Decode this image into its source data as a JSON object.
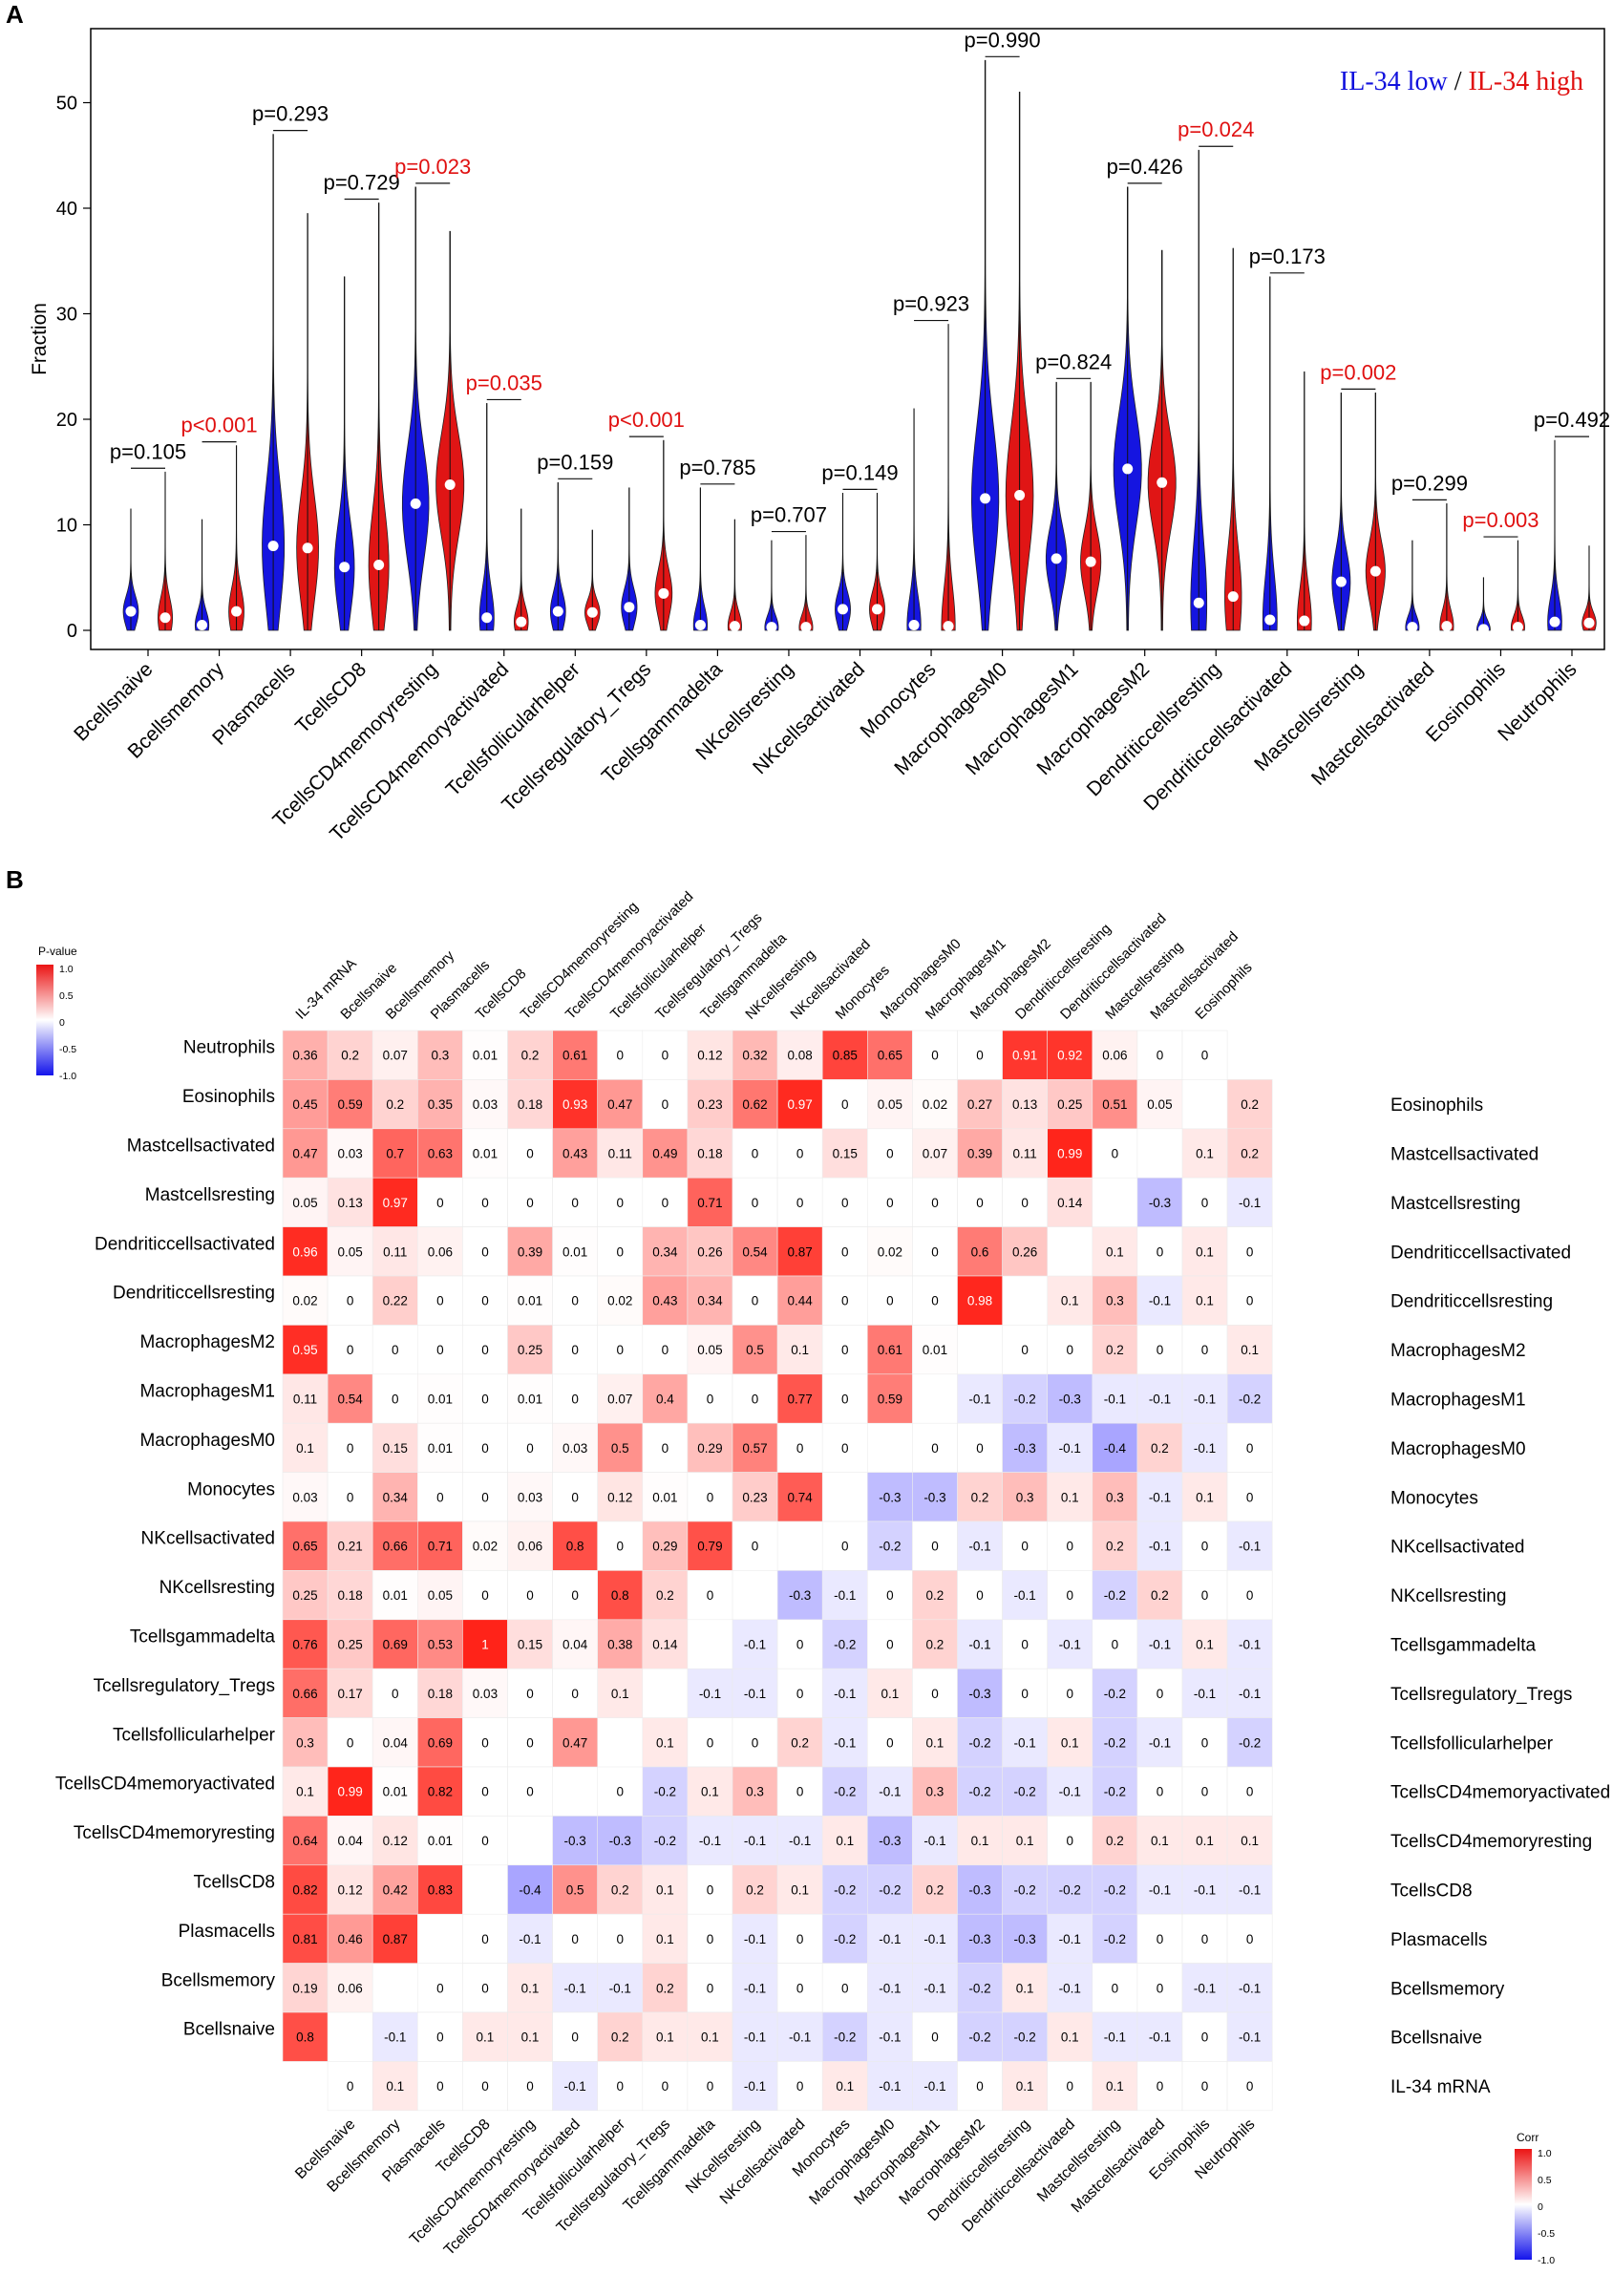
{
  "chart_data": [
    {
      "type": "violin",
      "panel": "A",
      "ylabel": "Fraction",
      "ylim": [
        0,
        55
      ],
      "yticks": [
        0,
        10,
        20,
        30,
        40,
        50
      ],
      "legend": {
        "low_label": "IL-34 low",
        "separator": " / ",
        "high_label": "IL-34 high",
        "low_color": "#1010dd",
        "high_color": "#e01010",
        "placement": "top-right"
      },
      "categories": [
        "Bcellsnaive",
        "Bcellsmemory",
        "Plasmacells",
        "TcellsCD8",
        "TcellsCD4memoryresting",
        "TcellsCD4memoryactivated",
        "Tcellsfollicularhelper",
        "Tcellsregulatory_Tregs",
        "Tcellsgammadelta",
        "NKcellsresting",
        "NKcellsactivated",
        "Monocytes",
        "MacrophagesM0",
        "MacrophagesM1",
        "MacrophagesM2",
        "Dendriticcellsresting",
        "Dendriticcellsactivated",
        "Mastcellsresting",
        "Mastcellsactivated",
        "Eosinophils",
        "Neutrophils"
      ],
      "p_values": [
        "p=0.105",
        "p<0.001",
        "p=0.293",
        "p=0.729",
        "p=0.023",
        "p=0.035",
        "p=0.159",
        "p<0.001",
        "p=0.785",
        "p=0.707",
        "p=0.149",
        "p=0.923",
        "p=0.990",
        "p=0.824",
        "p=0.426",
        "p=0.024",
        "p=0.173",
        "p=0.002",
        "p=0.299",
        "p=0.003",
        "p=0.492"
      ],
      "significant": [
        false,
        true,
        false,
        false,
        true,
        true,
        false,
        true,
        false,
        false,
        false,
        false,
        false,
        false,
        false,
        true,
        false,
        true,
        false,
        true,
        false
      ],
      "series": [
        {
          "name": "IL-34 low",
          "color": "#1515e0",
          "median": [
            1.8,
            0.5,
            8,
            6,
            12,
            1.2,
            1.8,
            2.2,
            0.5,
            0.3,
            2.0,
            0.5,
            12.5,
            6.8,
            15.3,
            2.6,
            1.0,
            4.6,
            0.3,
            0.1,
            0.8
          ],
          "max": [
            11.5,
            10.5,
            47,
            33.5,
            42,
            21.5,
            14,
            13.5,
            13.5,
            8.5,
            13,
            21,
            54,
            23.5,
            42,
            45.5,
            33.5,
            22.5,
            8.5,
            5,
            18
          ]
        },
        {
          "name": "IL-34 high",
          "color": "#e01515",
          "median": [
            1.2,
            1.8,
            7.8,
            6.2,
            13.8,
            0.8,
            1.7,
            3.5,
            0.4,
            0.3,
            2.0,
            0.4,
            12.8,
            6.5,
            14.0,
            3.2,
            0.9,
            5.6,
            0.4,
            0.3,
            0.7
          ],
          "max": [
            15,
            17.5,
            39.5,
            40.5,
            37.8,
            11.5,
            9.5,
            18,
            10.5,
            9,
            13,
            29,
            51,
            23.5,
            36,
            36.2,
            24.5,
            22.5,
            12,
            8.5,
            8
          ]
        }
      ]
    },
    {
      "type": "heatmap",
      "panel": "B",
      "legend_left_title": "P-value",
      "legend_right_title": "Corr",
      "legend_ticks": [
        "1.0",
        "0.5",
        "0",
        "-0.5",
        "-1.0"
      ],
      "top_labels": [
        "IL-34 mRNA",
        "Bcellsnaive",
        "Bcellsmemory",
        "Plasmacells",
        "TcellsCD8",
        "TcellsCD4memoryresting",
        "TcellsCD4memoryactivated",
        "Tcellsfollicularhelper",
        "Tcellsregulatory_Tregs",
        "Tcellsgammadelta",
        "NKcellsresting",
        "NKcellsactivated",
        "Monocytes",
        "MacrophagesM0",
        "MacrophagesM1",
        "MacrophagesM2",
        "Dendriticcellsresting",
        "Dendriticcellsactivated",
        "Mastcellsresting",
        "Mastcellsactivated",
        "Eosinophils"
      ],
      "bottom_labels": [
        "Bcellsnaive",
        "Bcellsmemory",
        "Plasmacells",
        "TcellsCD8",
        "TcellsCD4memoryresting",
        "TcellsCD4memoryactivated",
        "Tcellsfollicularhelper",
        "Tcellsregulatory_Tregs",
        "Tcellsgammadelta",
        "NKcellsresting",
        "NKcellsactivated",
        "Monocytes",
        "MacrophagesM0",
        "MacrophagesM1",
        "MacrophagesM2",
        "Dendriticcellsresting",
        "Dendriticcellsactivated",
        "Mastcellsresting",
        "Mastcellsactivated",
        "Eosinophils",
        "Neutrophils"
      ],
      "left_labels": [
        "Neutrophils",
        "Eosinophils",
        "Mastcellsactivated",
        "Mastcellsresting",
        "Dendriticcellsactivated",
        "Dendriticcellsresting",
        "MacrophagesM2",
        "MacrophagesM1",
        "MacrophagesM0",
        "Monocytes",
        "NKcellsactivated",
        "NKcellsresting",
        "Tcellsgammadelta",
        "Tcellsregulatory_Tregs",
        "Tcellsfollicularhelper",
        "TcellsCD4memoryactivated",
        "TcellsCD4memoryresting",
        "TcellsCD8",
        "Plasmacells",
        "Bcellsmemory",
        "Bcellsnaive"
      ],
      "right_labels": [
        "Eosinophils",
        "Mastcellsactivated",
        "Mastcellsresting",
        "Dendriticcellsactivated",
        "Dendriticcellsresting",
        "MacrophagesM2",
        "MacrophagesM1",
        "MacrophagesM0",
        "Monocytes",
        "NKcellsactivated",
        "NKcellsresting",
        "Tcellsgammadelta",
        "Tcellsregulatory_Tregs",
        "Tcellsfollicularhelper",
        "TcellsCD4memoryactivated",
        "TcellsCD4memoryresting",
        "TcellsCD8",
        "Plasmacells",
        "Bcellsmemory",
        "Bcellsnaive",
        "IL-34 mRNA"
      ],
      "cells": [
        [
          "0.36",
          "0.2",
          "0.07",
          "0.3",
          "0.01",
          "0.2",
          "0.61",
          "0",
          "0",
          "0.12",
          "0.32",
          "0.08",
          "0.85",
          "0.65",
          "0",
          "0",
          "0.91",
          "0.92",
          "0.06",
          "0",
          "0",
          "",
          ""
        ],
        [
          "0.45",
          "0.59",
          "0.2",
          "0.35",
          "0.03",
          "0.18",
          "0.93",
          "0.47",
          "0",
          "0.23",
          "0.62",
          "0.97",
          "0",
          "0.05",
          "0.02",
          "0.27",
          "0.13",
          "0.25",
          "0.51",
          "0.05",
          "",
          "0.2"
        ],
        [
          "0.47",
          "0.03",
          "0.7",
          "0.63",
          "0.01",
          "0",
          "0.43",
          "0.11",
          "0.49",
          "0.18",
          "0",
          "0",
          "0.15",
          "0",
          "0.07",
          "0.39",
          "0.11",
          "0.99",
          "0",
          "",
          "0.1",
          "0.2"
        ],
        [
          "0.05",
          "0.13",
          "0.97",
          "0",
          "0",
          "0",
          "0",
          "0",
          "0",
          "0.71",
          "0",
          "0",
          "0",
          "0",
          "0",
          "0",
          "0",
          "0.14",
          "",
          "-0.3",
          "0",
          "-0.1"
        ],
        [
          "0.96",
          "0.05",
          "0.11",
          "0.06",
          "0",
          "0.39",
          "0.01",
          "0",
          "0.34",
          "0.26",
          "0.54",
          "0.87",
          "0",
          "0.02",
          "0",
          "0.6",
          "0.26",
          "",
          "0.1",
          "0",
          "0.1",
          "0"
        ],
        [
          "0.02",
          "0",
          "0.22",
          "0",
          "0",
          "0.01",
          "0",
          "0.02",
          "0.43",
          "0.34",
          "0",
          "0.44",
          "0",
          "0",
          "0",
          "0.98",
          "",
          "0.1",
          "0.3",
          "-0.1",
          "0.1",
          "0"
        ],
        [
          "0.95",
          "0",
          "0",
          "0",
          "0",
          "0.25",
          "0",
          "0",
          "0",
          "0.05",
          "0.5",
          "0.1",
          "0",
          "0.61",
          "0.01",
          "",
          "0",
          "0",
          "0.2",
          "0",
          "0",
          "0.1"
        ],
        [
          "0.11",
          "0.54",
          "0",
          "0.01",
          "0",
          "0.01",
          "0",
          "0.07",
          "0.4",
          "0",
          "0",
          "0.77",
          "0",
          "0.59",
          "",
          "-0.1",
          "-0.2",
          "-0.3",
          "-0.1",
          "-0.1",
          "-0.1",
          "-0.2"
        ],
        [
          "0.1",
          "0",
          "0.15",
          "0.01",
          "0",
          "0",
          "0.03",
          "0.5",
          "0",
          "0.29",
          "0.57",
          "0",
          "0",
          "",
          "0",
          "0",
          "-0.3",
          "-0.1",
          "-0.4",
          "0.2",
          "-0.1",
          "0"
        ],
        [
          "0.03",
          "0",
          "0.34",
          "0",
          "0",
          "0.03",
          "0",
          "0.12",
          "0.01",
          "0",
          "0.23",
          "0.74",
          "",
          "-0.3",
          "-0.3",
          "0.2",
          "0.3",
          "0.1",
          "0.3",
          "-0.1",
          "0.1",
          "0"
        ],
        [
          "0.65",
          "0.21",
          "0.66",
          "0.71",
          "0.02",
          "0.06",
          "0.8",
          "0",
          "0.29",
          "0.79",
          "0",
          "",
          "0",
          "-0.2",
          "0",
          "-0.1",
          "0",
          "0",
          "0.2",
          "-0.1",
          "0",
          "-0.1"
        ],
        [
          "0.25",
          "0.18",
          "0.01",
          "0.05",
          "0",
          "0",
          "0",
          "0.8",
          "0.2",
          "0",
          "",
          "-0.3",
          "-0.1",
          "0",
          "0.2",
          "0",
          "-0.1",
          "0",
          "-0.2",
          "0.2",
          "0",
          "0"
        ],
        [
          "0.76",
          "0.25",
          "0.69",
          "0.53",
          "1",
          "0.15",
          "0.04",
          "0.38",
          "0.14",
          "",
          "-0.1",
          "0",
          "-0.2",
          "0",
          "0.2",
          "-0.1",
          "0",
          "-0.1",
          "0",
          "-0.1",
          "0.1",
          "-0.1"
        ],
        [
          "0.66",
          "0.17",
          "0",
          "0.18",
          "0.03",
          "0",
          "0",
          "0.1",
          "",
          "-0.1",
          "-0.1",
          "0",
          "-0.1",
          "0.1",
          "0",
          "-0.3",
          "0",
          "0",
          "-0.2",
          "0",
          "-0.1",
          "-0.1"
        ],
        [
          "0.3",
          "0",
          "0.04",
          "0.69",
          "0",
          "0",
          "0.47",
          "",
          "0.1",
          "0",
          "0",
          "0.2",
          "-0.1",
          "0",
          "0.1",
          "-0.2",
          "-0.1",
          "0.1",
          "-0.2",
          "-0.1",
          "0",
          "-0.2"
        ],
        [
          "0.1",
          "0.99",
          "0.01",
          "0.82",
          "0",
          "0",
          "",
          "0",
          "-0.2",
          "0.1",
          "0.3",
          "0",
          "-0.2",
          "-0.1",
          "0.3",
          "-0.2",
          "-0.2",
          "-0.1",
          "-0.2",
          "0",
          "0",
          "0"
        ],
        [
          "0.64",
          "0.04",
          "0.12",
          "0.01",
          "0",
          "",
          "-0.3",
          "-0.3",
          "-0.2",
          "-0.1",
          "-0.1",
          "-0.1",
          "0.1",
          "-0.3",
          "-0.1",
          "0.1",
          "0.1",
          "0",
          "0.2",
          "0.1",
          "0.1",
          "0.1"
        ],
        [
          "0.82",
          "0.12",
          "0.42",
          "0.83",
          "",
          "-0.4",
          "0.5",
          "0.2",
          "0.1",
          "0",
          "0.2",
          "0.1",
          "-0.2",
          "-0.2",
          "0.2",
          "-0.3",
          "-0.2",
          "-0.2",
          "-0.2",
          "-0.1",
          "-0.1",
          "-0.1"
        ],
        [
          "0.81",
          "0.46",
          "0.87",
          "",
          "0",
          "-0.1",
          "0",
          "0",
          "0.1",
          "0",
          "-0.1",
          "0",
          "-0.2",
          "-0.1",
          "-0.1",
          "-0.3",
          "-0.3",
          "-0.1",
          "-0.2",
          "0",
          "0",
          "0"
        ],
        [
          "0.19",
          "0.06",
          "",
          "0",
          "0",
          "0.1",
          "-0.1",
          "-0.1",
          "0.2",
          "0",
          "-0.1",
          "0",
          "0",
          "-0.1",
          "-0.1",
          "-0.2",
          "0.1",
          "-0.1",
          "0",
          "0",
          "-0.1",
          "-0.1"
        ],
        [
          "0.8",
          "",
          "-0.1",
          "0",
          "0.1",
          "0.1",
          "0",
          "0.2",
          "0.1",
          "0.1",
          "-0.1",
          "-0.1",
          "-0.2",
          "-0.1",
          "0",
          "-0.2",
          "-0.2",
          "0.1",
          "-0.1",
          "-0.1",
          "0",
          "-0.1"
        ],
        [
          "",
          "0",
          "0.1",
          "0",
          "0",
          "0",
          "-0.1",
          "0",
          "0",
          "0",
          "-0.1",
          "0",
          "0.1",
          "-0.1",
          "-0.1",
          "0",
          "0.1",
          "0",
          "0.1",
          "0",
          "0",
          "0"
        ]
      ]
    }
  ],
  "panels": {
    "a_letter": "A",
    "b_letter": "B"
  }
}
